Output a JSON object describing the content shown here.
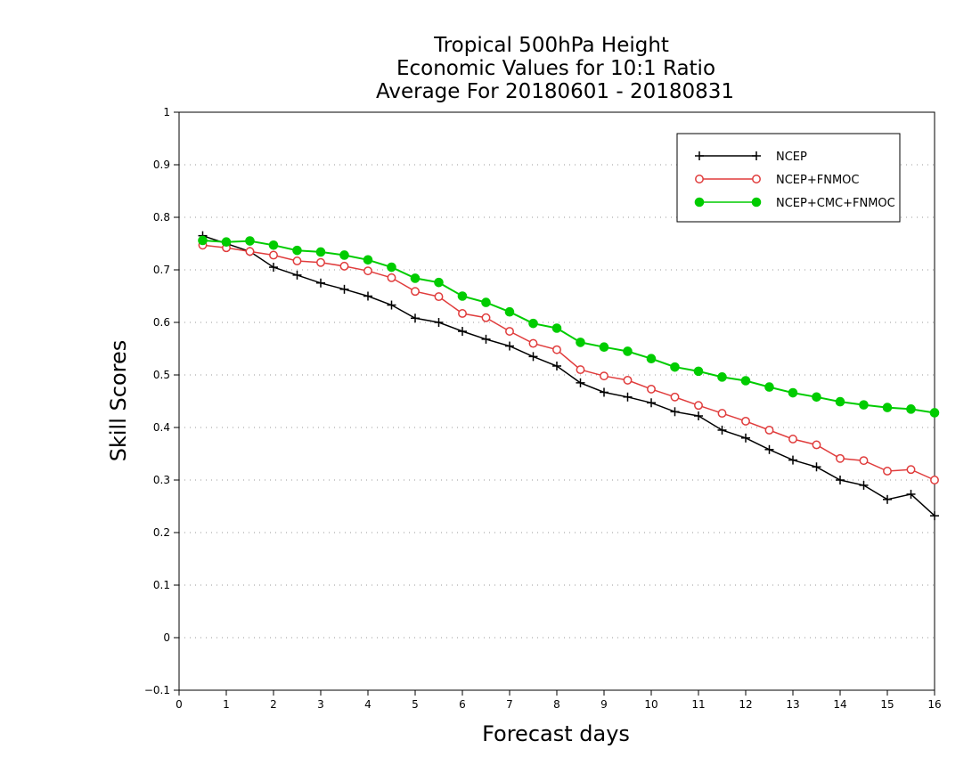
{
  "chart_data": {
    "type": "line",
    "title_lines": [
      "Tropical 500hPa Height",
      "Economic Values for 10:1 Ratio",
      "Average For 20180601 - 20180831"
    ],
    "xlabel": "Forecast days",
    "ylabel": "Skill Scores",
    "xlim": [
      0,
      16
    ],
    "ylim": [
      -0.1,
      1
    ],
    "x_ticks": [
      "0",
      "1",
      "2",
      "3",
      "4",
      "5",
      "6",
      "7",
      "8",
      "9",
      "10",
      "11",
      "12",
      "13",
      "14",
      "15",
      "16"
    ],
    "y_ticks": [
      "−0.1",
      "0",
      "0.1",
      "0.2",
      "0.3",
      "0.4",
      "0.5",
      "0.6",
      "0.7",
      "0.8",
      "0.9",
      "1"
    ],
    "grid": "horizontal dotted",
    "legend_position": "top-right",
    "x": [
      0.5,
      1,
      1.5,
      2,
      2.5,
      3,
      3.5,
      4,
      4.5,
      5,
      5.5,
      6,
      6.5,
      7,
      7.5,
      8,
      8.5,
      9,
      9.5,
      10,
      10.5,
      11,
      11.5,
      12,
      12.5,
      13,
      13.5,
      14,
      14.5,
      15,
      15.5,
      16
    ],
    "series": [
      {
        "name": "NCEP",
        "color": "#000000",
        "marker": "plus",
        "values": [
          0.765,
          0.75,
          0.735,
          0.705,
          0.69,
          0.675,
          0.663,
          0.65,
          0.633,
          0.608,
          0.6,
          0.583,
          0.568,
          0.555,
          0.535,
          0.517,
          0.485,
          0.467,
          0.458,
          0.447,
          0.43,
          0.422,
          0.395,
          0.38,
          0.358,
          0.338,
          0.325,
          0.3,
          0.29,
          0.263,
          0.273,
          0.232
        ]
      },
      {
        "name": "NCEP+FNMOC",
        "color": "#e03c3c",
        "marker": "open-circle",
        "values": [
          0.747,
          0.742,
          0.735,
          0.728,
          0.717,
          0.714,
          0.707,
          0.698,
          0.685,
          0.659,
          0.649,
          0.617,
          0.609,
          0.583,
          0.56,
          0.548,
          0.51,
          0.498,
          0.49,
          0.473,
          0.458,
          0.442,
          0.427,
          0.412,
          0.395,
          0.378,
          0.367,
          0.341,
          0.337,
          0.317,
          0.32,
          0.3
        ]
      },
      {
        "name": "NCEP+CMC+FNMOC",
        "color": "#00cc00",
        "marker": "filled-circle",
        "values": [
          0.756,
          0.753,
          0.755,
          0.747,
          0.737,
          0.734,
          0.728,
          0.719,
          0.705,
          0.684,
          0.676,
          0.65,
          0.638,
          0.62,
          0.598,
          0.589,
          0.562,
          0.553,
          0.545,
          0.531,
          0.515,
          0.507,
          0.496,
          0.489,
          0.477,
          0.466,
          0.458,
          0.449,
          0.443,
          0.438,
          0.435,
          0.428
        ]
      }
    ]
  }
}
